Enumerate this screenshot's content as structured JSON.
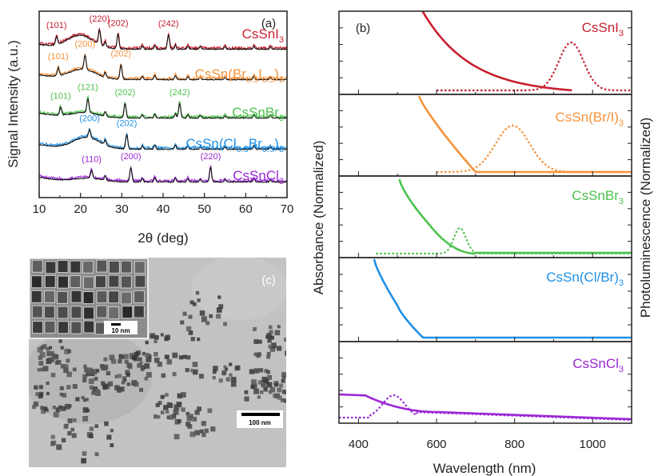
{
  "colors": {
    "CsSnI3": "#c8202f",
    "CsSn_BrI": "#f7923a",
    "CsSnBr3": "#4cc24c",
    "CsSn_ClBr": "#1e90e6",
    "CsSnCl3": "#9b27d6",
    "axis": "#222222"
  },
  "chart_data": [
    {
      "panel": "(a)",
      "type": "line",
      "xlabel": "2θ (deg)",
      "ylabel": "Signal Intensity (a.u.)",
      "xlim": [
        10,
        70
      ],
      "xticks": [
        10,
        20,
        30,
        40,
        50,
        60,
        70
      ],
      "series": [
        {
          "name": "CsSnI3",
          "label_main": "CsSnI",
          "label_sub": "3",
          "peaks": [
            {
              "x": 14.2,
              "label": "(101)"
            },
            {
              "x": 24.6,
              "label": "(220)"
            },
            {
              "x": 29.1,
              "label": "(202)"
            },
            {
              "x": 41.3,
              "label": "(242)"
            }
          ]
        },
        {
          "name": "CsSn(Br0.5I0.5)3",
          "label_main": "CsSn(Br",
          "label_sub1": "0.5",
          "label_mid": "I",
          "label_sub2": "0.5",
          "label_end": ")",
          "label_sub3": "3",
          "peaks": [
            {
              "x": 14.6,
              "label": "(101)"
            },
            {
              "x": 21.1,
              "label": "(200)"
            },
            {
              "x": 29.8,
              "label": "(202)"
            }
          ]
        },
        {
          "name": "CsSnBr3",
          "label_main": "CsSnBr",
          "label_sub": "3",
          "peaks": [
            {
              "x": 15.2,
              "label": "(101)"
            },
            {
              "x": 21.8,
              "label": "(121)"
            },
            {
              "x": 30.8,
              "label": "(202)"
            },
            {
              "x": 44.0,
              "label": "(242)"
            }
          ]
        },
        {
          "name": "CsSn(Cl0.5Br0.5)3",
          "label_main": "CsSn(Cl",
          "label_sub1": "0.5",
          "label_mid": "Br",
          "label_sub2": "0.5",
          "label_end": ")",
          "label_sub3": "3",
          "peaks": [
            {
              "x": 22.2,
              "label": "(200)"
            },
            {
              "x": 31.2,
              "label": "(202)"
            }
          ]
        },
        {
          "name": "CsSnCl3",
          "label_main": "CsSnCl",
          "label_sub": "3",
          "peaks": [
            {
              "x": 22.7,
              "label": "(110)"
            },
            {
              "x": 32.2,
              "label": "(200)"
            },
            {
              "x": 51.5,
              "label": "(220)"
            }
          ]
        }
      ]
    },
    {
      "panel": "(b)",
      "type": "line",
      "xlabel": "Wavelength (nm)",
      "ylabel_left": "Absorbance (Normalized)",
      "ylabel_right": "Photoluminescence (Normalized)",
      "xlim": [
        350,
        1100
      ],
      "xticks": [
        400,
        600,
        800,
        1000
      ],
      "series": [
        {
          "name": "CsSnI3",
          "label_main": "CsSnI",
          "label_sub": "3",
          "absorbance": {
            "edge_nm": 950,
            "start_nm": 560
          },
          "pl_peak_nm": 945
        },
        {
          "name": "CsSn(Br/I)3",
          "label_main": "CsSn(Br/I)",
          "label_sub": "3",
          "absorbance": {
            "edge_nm": 700,
            "start_nm": 555
          },
          "pl_peak_nm": 795
        },
        {
          "name": "CsSnBr3",
          "label_main": "CsSnBr",
          "label_sub": "3",
          "absorbance": {
            "edge_nm": 680,
            "start_nm": 505
          },
          "pl_peak_nm": 660
        },
        {
          "name": "CsSn(Cl/Br)3",
          "label_main": "CsSn(Cl/Br)",
          "label_sub": "3",
          "absorbance": {
            "edge_nm": 560,
            "start_nm": 440
          },
          "pl_peak_nm": null
        },
        {
          "name": "CsSnCl3",
          "label_main": "CsSnCl",
          "label_sub": "3",
          "absorbance": {
            "edge_nm": 600,
            "start_nm": 350
          },
          "pl_peak_nm": 490
        }
      ]
    }
  ],
  "panel_c": {
    "label": "(c)",
    "scalebar_main": "100 nm",
    "scalebar_inset": "10 nm"
  }
}
